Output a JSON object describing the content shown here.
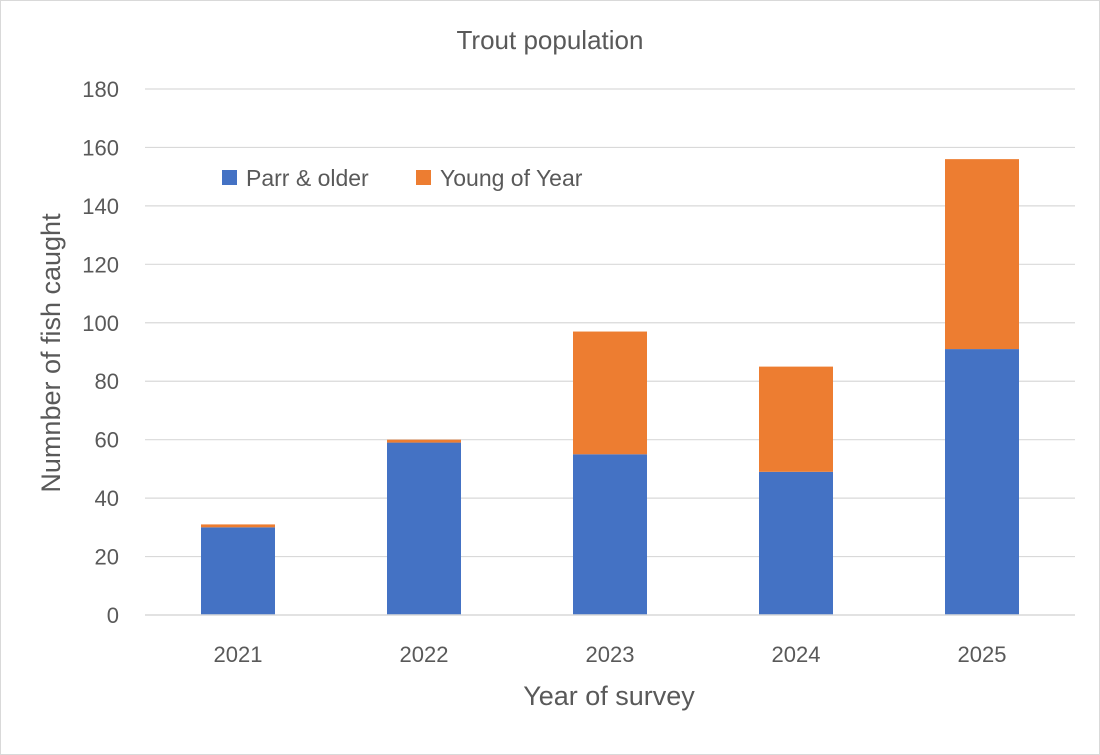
{
  "chart_data": {
    "type": "bar",
    "stacked": true,
    "title": "Trout population",
    "xlabel": "Year of survey",
    "ylabel": "Numnber of fish caught",
    "categories": [
      "2021",
      "2022",
      "2023",
      "2024",
      "2025"
    ],
    "series": [
      {
        "name": "Parr & older",
        "color": "#4472c4",
        "values": [
          30,
          59,
          55,
          49,
          91
        ]
      },
      {
        "name": "Young of Year",
        "color": "#ed7d31",
        "values": [
          1,
          1,
          42,
          36,
          65
        ]
      }
    ],
    "ylim": [
      0,
      180
    ],
    "yticks": [
      "0",
      "20",
      "40",
      "60",
      "80",
      "100",
      "120",
      "140",
      "160",
      "180"
    ],
    "grid": true,
    "legend_position": "top-left"
  }
}
